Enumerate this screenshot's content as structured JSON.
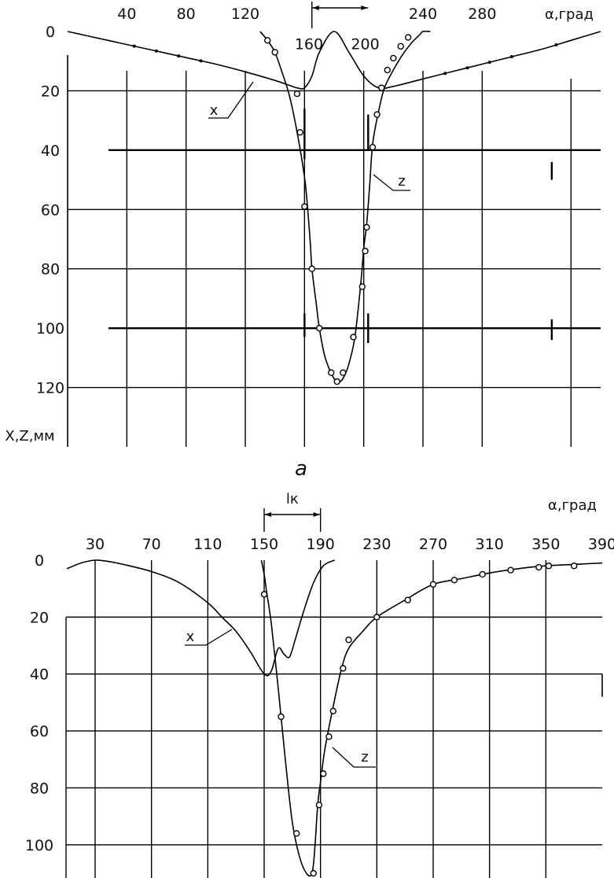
{
  "figure": {
    "panel_a_label": "a"
  },
  "chart_data": [
    {
      "type": "line",
      "xlabel": "α,град",
      "ylabel": "X,Z,мм",
      "x_ticks": [
        40,
        80,
        120,
        160,
        200,
        240,
        280
      ],
      "y_ticks": [
        0,
        20,
        40,
        60,
        80,
        100,
        120
      ],
      "xlim": [
        0,
        360
      ],
      "ylim": [
        0,
        140
      ],
      "y_inverted": true,
      "grid": true,
      "series": [
        {
          "name": "X",
          "x": [
            0,
            20,
            40,
            60,
            80,
            100,
            120,
            140,
            150,
            155,
            160,
            165,
            170,
            180,
            190,
            200,
            210,
            220,
            240,
            260,
            280,
            300,
            320,
            340,
            360
          ],
          "y": [
            0,
            2.2,
            4.4,
            6.6,
            8.8,
            11,
            13.6,
            16.5,
            18.2,
            19,
            19,
            15,
            7,
            0,
            7,
            15,
            19,
            18.5,
            16,
            13.5,
            11,
            8.5,
            6,
            3,
            0
          ],
          "arc_markers": [
            45,
            60,
            75,
            90,
            255,
            270,
            285,
            300,
            330
          ],
          "open_markers": []
        },
        {
          "name": "Z",
          "x": [
            130,
            135,
            140,
            145,
            150,
            155,
            160,
            162,
            164,
            165,
            168,
            170,
            174,
            180,
            184,
            187,
            190,
            194,
            198,
            200,
            202,
            204,
            206,
            210,
            214,
            220,
            226,
            232,
            238,
            240,
            245
          ],
          "y": [
            0,
            3,
            7,
            14,
            22,
            34,
            49,
            59,
            72,
            80,
            92,
            100,
            110,
            117,
            118,
            116,
            112,
            103,
            85,
            73,
            65,
            52,
            38,
            27,
            19,
            13,
            8,
            4,
            1,
            0,
            0
          ],
          "arc_markers": [],
          "open_markers": [
            [
              135,
              3
            ],
            [
              140,
              7
            ],
            [
              155,
              21
            ],
            [
              157,
              34
            ],
            [
              160,
              59
            ],
            [
              165,
              80
            ],
            [
              170,
              100
            ],
            [
              178,
              115
            ],
            [
              182,
              118
            ],
            [
              186,
              115
            ],
            [
              193,
              103
            ],
            [
              199,
              86
            ],
            [
              201,
              74
            ],
            [
              202,
              66
            ],
            [
              206,
              39
            ],
            [
              209,
              28
            ],
            [
              212,
              19
            ],
            [
              216,
              13
            ],
            [
              220,
              9
            ],
            [
              225,
              5
            ],
            [
              230,
              2
            ]
          ]
        }
      ],
      "annotations": [
        {
          "text": "160",
          "x": 163,
          "y": 6
        },
        {
          "text": "200",
          "x": 201,
          "y": 6
        },
        {
          "text": "x",
          "kind": "leader"
        },
        {
          "text": "z",
          "kind": "leader"
        }
      ]
    },
    {
      "type": "line",
      "xlabel": "α,град",
      "x_ticks": [
        30,
        70,
        110,
        150,
        190,
        230,
        270,
        310,
        350,
        390
      ],
      "y_ticks": [
        0,
        20,
        40,
        60,
        80,
        100
      ],
      "xlim": [
        10,
        390
      ],
      "ylim": [
        0,
        110
      ],
      "y_inverted": true,
      "grid": true,
      "bracket_label": "lк",
      "bracket_x": [
        150,
        190
      ],
      "series": [
        {
          "name": "X",
          "x": [
            10,
            20,
            30,
            40,
            50,
            70,
            90,
            110,
            120,
            130,
            140,
            150,
            155,
            160,
            164,
            168,
            172,
            178,
            185,
            192,
            200
          ],
          "y": [
            3,
            1,
            0,
            0.5,
            1.5,
            4,
            8,
            15,
            20,
            25,
            32,
            40,
            39,
            31,
            33,
            34,
            28,
            18,
            8,
            2,
            0
          ],
          "arc_markers": [],
          "open_markers": []
        },
        {
          "name": "Z",
          "x": [
            148,
            150,
            152,
            155,
            160,
            165,
            170,
            175,
            180,
            184,
            186,
            188,
            190,
            192,
            194,
            200,
            205,
            210,
            220,
            230,
            250,
            270,
            290,
            310,
            330,
            350,
            370,
            390
          ],
          "y": [
            0,
            5,
            12,
            22,
            45,
            70,
            92,
            104,
            110,
            110,
            101,
            86,
            78,
            70,
            64,
            49,
            38,
            31,
            25,
            20,
            14,
            8.5,
            6.5,
            4.5,
            3,
            2,
            1.5,
            1
          ],
          "arc_markers": [],
          "open_markers": [
            [
              150,
              12
            ],
            [
              162,
              55
            ],
            [
              173,
              96
            ],
            [
              185,
              110
            ],
            [
              189,
              86
            ],
            [
              192,
              75
            ],
            [
              196,
              62
            ],
            [
              199,
              53
            ],
            [
              206,
              38
            ],
            [
              210,
              28
            ],
            [
              230,
              20
            ],
            [
              252,
              14
            ],
            [
              270,
              8.5
            ],
            [
              285,
              7
            ],
            [
              305,
              5
            ],
            [
              325,
              3.5
            ],
            [
              345,
              2.5
            ],
            [
              352,
              2
            ],
            [
              370,
              2
            ]
          ]
        }
      ],
      "annotations": [
        {
          "text": "x",
          "kind": "leader"
        },
        {
          "text": "z",
          "kind": "leader"
        }
      ]
    }
  ]
}
